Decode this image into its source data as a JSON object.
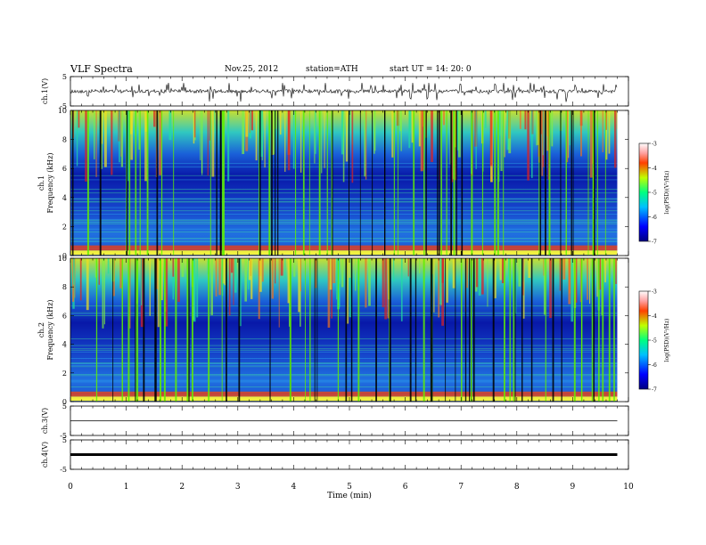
{
  "header": {
    "title": "VLF  Spectra",
    "date": "Nov.25, 2012",
    "station": "station=ATH",
    "start": "start  UT  =   14: 20: 0"
  },
  "chart_data": {
    "type": "heatmap",
    "x_axis": {
      "label": "Time (min)",
      "range": [
        0,
        10
      ],
      "ticks": [
        "0",
        "1",
        "2",
        "3",
        "4",
        "5",
        "6",
        "7",
        "8",
        "9",
        "10"
      ]
    },
    "data_end_min": 9.8,
    "panels": [
      {
        "kind": "waveform",
        "ylabel": "ch.1(V)",
        "yticks": [
          "5",
          "-5"
        ],
        "ylim": [
          -5,
          5
        ],
        "level": 0,
        "noise": "high"
      },
      {
        "kind": "spectrogram",
        "ylabel": [
          "ch.1",
          "Frequency  (kHz)"
        ],
        "yticks": [
          "10",
          "8",
          "6",
          "4",
          "2",
          "0"
        ],
        "ylim": [
          0,
          10
        ],
        "colorbar": {
          "label": "log(PSD)(V²/Hz)",
          "ticks": [
            "-3",
            "-4",
            "-5",
            "-6",
            "-7"
          ],
          "range": [
            -7,
            -3
          ]
        }
      },
      {
        "kind": "spectrogram",
        "ylabel": [
          "ch.2",
          "Frequency  (kHz)"
        ],
        "yticks": [
          "10",
          "8",
          "6",
          "4",
          "2",
          "0"
        ],
        "ylim": [
          0,
          10
        ],
        "colorbar": {
          "label": "log(PSD)(V²/Hz)",
          "ticks": [
            "-3",
            "-4",
            "-5",
            "-6",
            "-7"
          ],
          "range": [
            -7,
            -3
          ]
        }
      },
      {
        "kind": "waveform",
        "ylabel": "ch.3(V)",
        "yticks": [
          "5",
          "-5"
        ],
        "ylim": [
          -5,
          5
        ],
        "level": 0,
        "noise": "none"
      },
      {
        "kind": "waveform",
        "ylabel": "ch.4(V)",
        "yticks": [
          "5",
          "-5"
        ],
        "ylim": [
          -5,
          5
        ],
        "level": 0,
        "noise": "thick"
      }
    ]
  }
}
